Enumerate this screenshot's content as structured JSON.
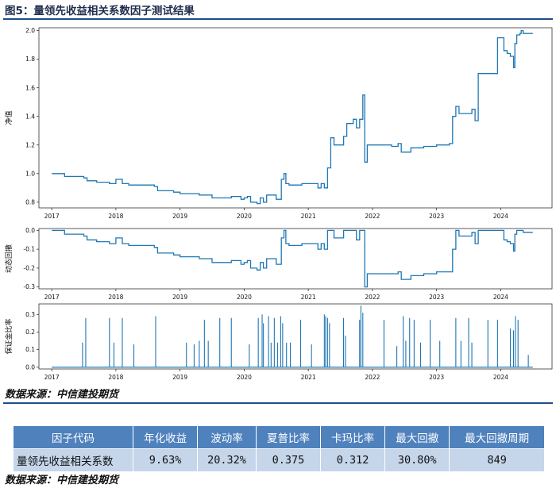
{
  "figure_title": "图5：量领先收益相关系数因子测试结果",
  "source_top": "数据来源：中信建投期货",
  "source_bottom": "数据来源：中信建投期货",
  "colors": {
    "line": "#1f77b4",
    "accent": "#1f4e8c",
    "table_header": "#4f81bd",
    "table_cell": "#c5d5ea"
  },
  "chart_data": [
    {
      "type": "line",
      "ylabel": "净值",
      "x_ticks": [
        "2017",
        "2018",
        "2019",
        "2020",
        "2021",
        "2022",
        "2023",
        "2024"
      ],
      "y_ticks": [
        "0.8",
        "1.0",
        "1.2",
        "1.4",
        "1.6",
        "1.8",
        "2.0"
      ],
      "ylim": [
        0.76,
        2.02
      ],
      "xlim": [
        2016.8,
        2024.8
      ],
      "series": [
        {
          "points": [
            [
              2017.0,
              1.0
            ],
            [
              2017.15,
              1.0
            ],
            [
              2017.2,
              0.98
            ],
            [
              2017.5,
              0.97
            ],
            [
              2017.55,
              0.95
            ],
            [
              2017.7,
              0.94
            ],
            [
              2017.9,
              0.93
            ],
            [
              2018.0,
              0.96
            ],
            [
              2018.1,
              0.93
            ],
            [
              2018.2,
              0.92
            ],
            [
              2018.5,
              0.92
            ],
            [
              2018.6,
              0.91
            ],
            [
              2018.65,
              0.88
            ],
            [
              2018.9,
              0.87
            ],
            [
              2019.0,
              0.86
            ],
            [
              2019.3,
              0.85
            ],
            [
              2019.5,
              0.83
            ],
            [
              2019.7,
              0.83
            ],
            [
              2019.8,
              0.84
            ],
            [
              2019.95,
              0.82
            ],
            [
              2020.0,
              0.83
            ],
            [
              2020.05,
              0.84
            ],
            [
              2020.1,
              0.8
            ],
            [
              2020.2,
              0.79
            ],
            [
              2020.25,
              0.83
            ],
            [
              2020.3,
              0.8
            ],
            [
              2020.35,
              0.85
            ],
            [
              2020.5,
              0.82
            ],
            [
              2020.55,
              0.82
            ],
            [
              2020.58,
              0.96
            ],
            [
              2020.62,
              1.0
            ],
            [
              2020.65,
              0.93
            ],
            [
              2020.7,
              0.92
            ],
            [
              2020.9,
              0.93
            ],
            [
              2021.1,
              0.93
            ],
            [
              2021.15,
              0.9
            ],
            [
              2021.2,
              0.93
            ],
            [
              2021.25,
              0.9
            ],
            [
              2021.3,
              1.04
            ],
            [
              2021.35,
              1.25
            ],
            [
              2021.4,
              1.2
            ],
            [
              2021.55,
              1.26
            ],
            [
              2021.6,
              1.35
            ],
            [
              2021.7,
              1.38
            ],
            [
              2021.75,
              1.32
            ],
            [
              2021.8,
              1.38
            ],
            [
              2021.85,
              1.55
            ],
            [
              2021.88,
              1.08
            ],
            [
              2021.92,
              1.2
            ],
            [
              2022.3,
              1.19
            ],
            [
              2022.4,
              1.21
            ],
            [
              2022.45,
              1.15
            ],
            [
              2022.6,
              1.18
            ],
            [
              2022.8,
              1.19
            ],
            [
              2023.0,
              1.2
            ],
            [
              2023.2,
              1.21
            ],
            [
              2023.25,
              1.4
            ],
            [
              2023.3,
              1.47
            ],
            [
              2023.35,
              1.42
            ],
            [
              2023.5,
              1.42
            ],
            [
              2023.55,
              1.45
            ],
            [
              2023.6,
              1.37
            ],
            [
              2023.65,
              1.7
            ],
            [
              2023.9,
              1.7
            ],
            [
              2023.95,
              1.95
            ],
            [
              2024.05,
              1.86
            ],
            [
              2024.1,
              1.84
            ],
            [
              2024.15,
              1.82
            ],
            [
              2024.2,
              1.74
            ],
            [
              2024.22,
              1.91
            ],
            [
              2024.25,
              1.97
            ],
            [
              2024.3,
              1.98
            ],
            [
              2024.32,
              2.0
            ],
            [
              2024.35,
              1.98
            ],
            [
              2024.5,
              1.98
            ]
          ]
        }
      ]
    },
    {
      "type": "line",
      "ylabel": "动态回撤",
      "x_ticks": [
        "2017",
        "2018",
        "2019",
        "2020",
        "2021",
        "2022",
        "2023",
        "2024"
      ],
      "y_ticks": [
        "-0.3",
        "-0.2",
        "-0.1",
        "0.0"
      ],
      "ylim": [
        -0.31,
        0.01
      ],
      "xlim": [
        2016.8,
        2024.8
      ],
      "series": [
        {
          "points": [
            [
              2017.0,
              0.0
            ],
            [
              2017.15,
              0.0
            ],
            [
              2017.2,
              -0.02
            ],
            [
              2017.5,
              -0.03
            ],
            [
              2017.55,
              -0.05
            ],
            [
              2017.7,
              -0.06
            ],
            [
              2017.9,
              -0.07
            ],
            [
              2018.0,
              -0.04
            ],
            [
              2018.1,
              -0.07
            ],
            [
              2018.2,
              -0.08
            ],
            [
              2018.5,
              -0.08
            ],
            [
              2018.6,
              -0.09
            ],
            [
              2018.65,
              -0.12
            ],
            [
              2018.9,
              -0.13
            ],
            [
              2019.0,
              -0.14
            ],
            [
              2019.3,
              -0.15
            ],
            [
              2019.5,
              -0.17
            ],
            [
              2019.7,
              -0.17
            ],
            [
              2019.8,
              -0.16
            ],
            [
              2019.95,
              -0.18
            ],
            [
              2020.0,
              -0.17
            ],
            [
              2020.05,
              -0.16
            ],
            [
              2020.1,
              -0.2
            ],
            [
              2020.2,
              -0.21
            ],
            [
              2020.25,
              -0.17
            ],
            [
              2020.3,
              -0.2
            ],
            [
              2020.35,
              -0.15
            ],
            [
              2020.5,
              -0.18
            ],
            [
              2020.55,
              -0.18
            ],
            [
              2020.58,
              -0.04
            ],
            [
              2020.62,
              0.0
            ],
            [
              2020.65,
              -0.07
            ],
            [
              2020.7,
              -0.08
            ],
            [
              2020.9,
              -0.07
            ],
            [
              2021.1,
              -0.07
            ],
            [
              2021.15,
              -0.1
            ],
            [
              2021.2,
              -0.07
            ],
            [
              2021.25,
              -0.1
            ],
            [
              2021.3,
              0.0
            ],
            [
              2021.4,
              -0.04
            ],
            [
              2021.55,
              0.0
            ],
            [
              2021.7,
              0.0
            ],
            [
              2021.75,
              -0.05
            ],
            [
              2021.8,
              0.0
            ],
            [
              2021.85,
              0.0
            ],
            [
              2021.88,
              -0.3
            ],
            [
              2021.92,
              -0.23
            ],
            [
              2022.3,
              -0.23
            ],
            [
              2022.4,
              -0.22
            ],
            [
              2022.45,
              -0.26
            ],
            [
              2022.6,
              -0.24
            ],
            [
              2022.8,
              -0.23
            ],
            [
              2023.0,
              -0.22
            ],
            [
              2023.2,
              -0.22
            ],
            [
              2023.25,
              -0.1
            ],
            [
              2023.3,
              0.0
            ],
            [
              2023.35,
              -0.03
            ],
            [
              2023.5,
              -0.03
            ],
            [
              2023.55,
              -0.01
            ],
            [
              2023.6,
              -0.07
            ],
            [
              2023.65,
              0.0
            ],
            [
              2023.95,
              0.0
            ],
            [
              2024.05,
              -0.05
            ],
            [
              2024.1,
              -0.06
            ],
            [
              2024.15,
              -0.07
            ],
            [
              2024.2,
              -0.11
            ],
            [
              2024.22,
              -0.02
            ],
            [
              2024.25,
              0.0
            ],
            [
              2024.35,
              -0.01
            ],
            [
              2024.5,
              -0.01
            ]
          ]
        }
      ]
    },
    {
      "type": "bar",
      "ylabel": "保证金比率",
      "x_ticks": [
        "2017",
        "2018",
        "2019",
        "2020",
        "2021",
        "2022",
        "2023",
        "2024"
      ],
      "y_ticks": [
        "0.0",
        "0.1",
        "0.2",
        "0.3"
      ],
      "ylim": [
        -0.01,
        0.36
      ],
      "xlim": [
        2016.8,
        2024.8
      ],
      "spikes": [
        [
          2017.48,
          0.14
        ],
        [
          2017.53,
          0.28
        ],
        [
          2017.9,
          0.28
        ],
        [
          2017.97,
          0.14
        ],
        [
          2018.1,
          0.28
        ],
        [
          2018.28,
          0.13
        ],
        [
          2018.62,
          0.29
        ],
        [
          2019.1,
          0.14
        ],
        [
          2019.22,
          0.13
        ],
        [
          2019.3,
          0.15
        ],
        [
          2019.38,
          0.27
        ],
        [
          2019.44,
          0.15
        ],
        [
          2019.62,
          0.28
        ],
        [
          2019.8,
          0.28
        ],
        [
          2020.08,
          0.13
        ],
        [
          2020.22,
          0.28
        ],
        [
          2020.28,
          0.3
        ],
        [
          2020.3,
          0.25
        ],
        [
          2020.38,
          0.29
        ],
        [
          2020.42,
          0.14
        ],
        [
          2020.47,
          0.28
        ],
        [
          2020.52,
          0.14
        ],
        [
          2020.57,
          0.29
        ],
        [
          2020.6,
          0.25
        ],
        [
          2020.66,
          0.14
        ],
        [
          2020.72,
          0.14
        ],
        [
          2020.88,
          0.27
        ],
        [
          2021.05,
          0.13
        ],
        [
          2021.25,
          0.3
        ],
        [
          2021.27,
          0.29
        ],
        [
          2021.3,
          0.28
        ],
        [
          2021.33,
          0.25
        ],
        [
          2021.55,
          0.28
        ],
        [
          2021.58,
          0.18
        ],
        [
          2021.8,
          0.27
        ],
        [
          2021.82,
          0.35
        ],
        [
          2021.85,
          0.31
        ],
        [
          2022.18,
          0.27
        ],
        [
          2022.38,
          0.12
        ],
        [
          2022.48,
          0.29
        ],
        [
          2022.52,
          0.15
        ],
        [
          2022.58,
          0.28
        ],
        [
          2022.65,
          0.27
        ],
        [
          2022.75,
          0.14
        ],
        [
          2022.9,
          0.27
        ],
        [
          2023.05,
          0.15
        ],
        [
          2023.3,
          0.28
        ],
        [
          2023.38,
          0.15
        ],
        [
          2023.5,
          0.28
        ],
        [
          2023.55,
          0.14
        ],
        [
          2023.8,
          0.27
        ],
        [
          2023.95,
          0.27
        ],
        [
          2024.15,
          0.22
        ],
        [
          2024.2,
          0.21
        ],
        [
          2024.23,
          0.29
        ],
        [
          2024.27,
          0.27
        ],
        [
          2024.43,
          0.07
        ]
      ]
    }
  ],
  "table": {
    "headers": [
      "因子代码",
      "年化收益",
      "波动率",
      "夏普比率",
      "卡玛比率",
      "最大回撤",
      "最大回撤周期"
    ],
    "row": [
      "量领先收益相关系数",
      "9.63%",
      "20.32%",
      "0.375",
      "0.312",
      "30.80%",
      "849"
    ]
  }
}
